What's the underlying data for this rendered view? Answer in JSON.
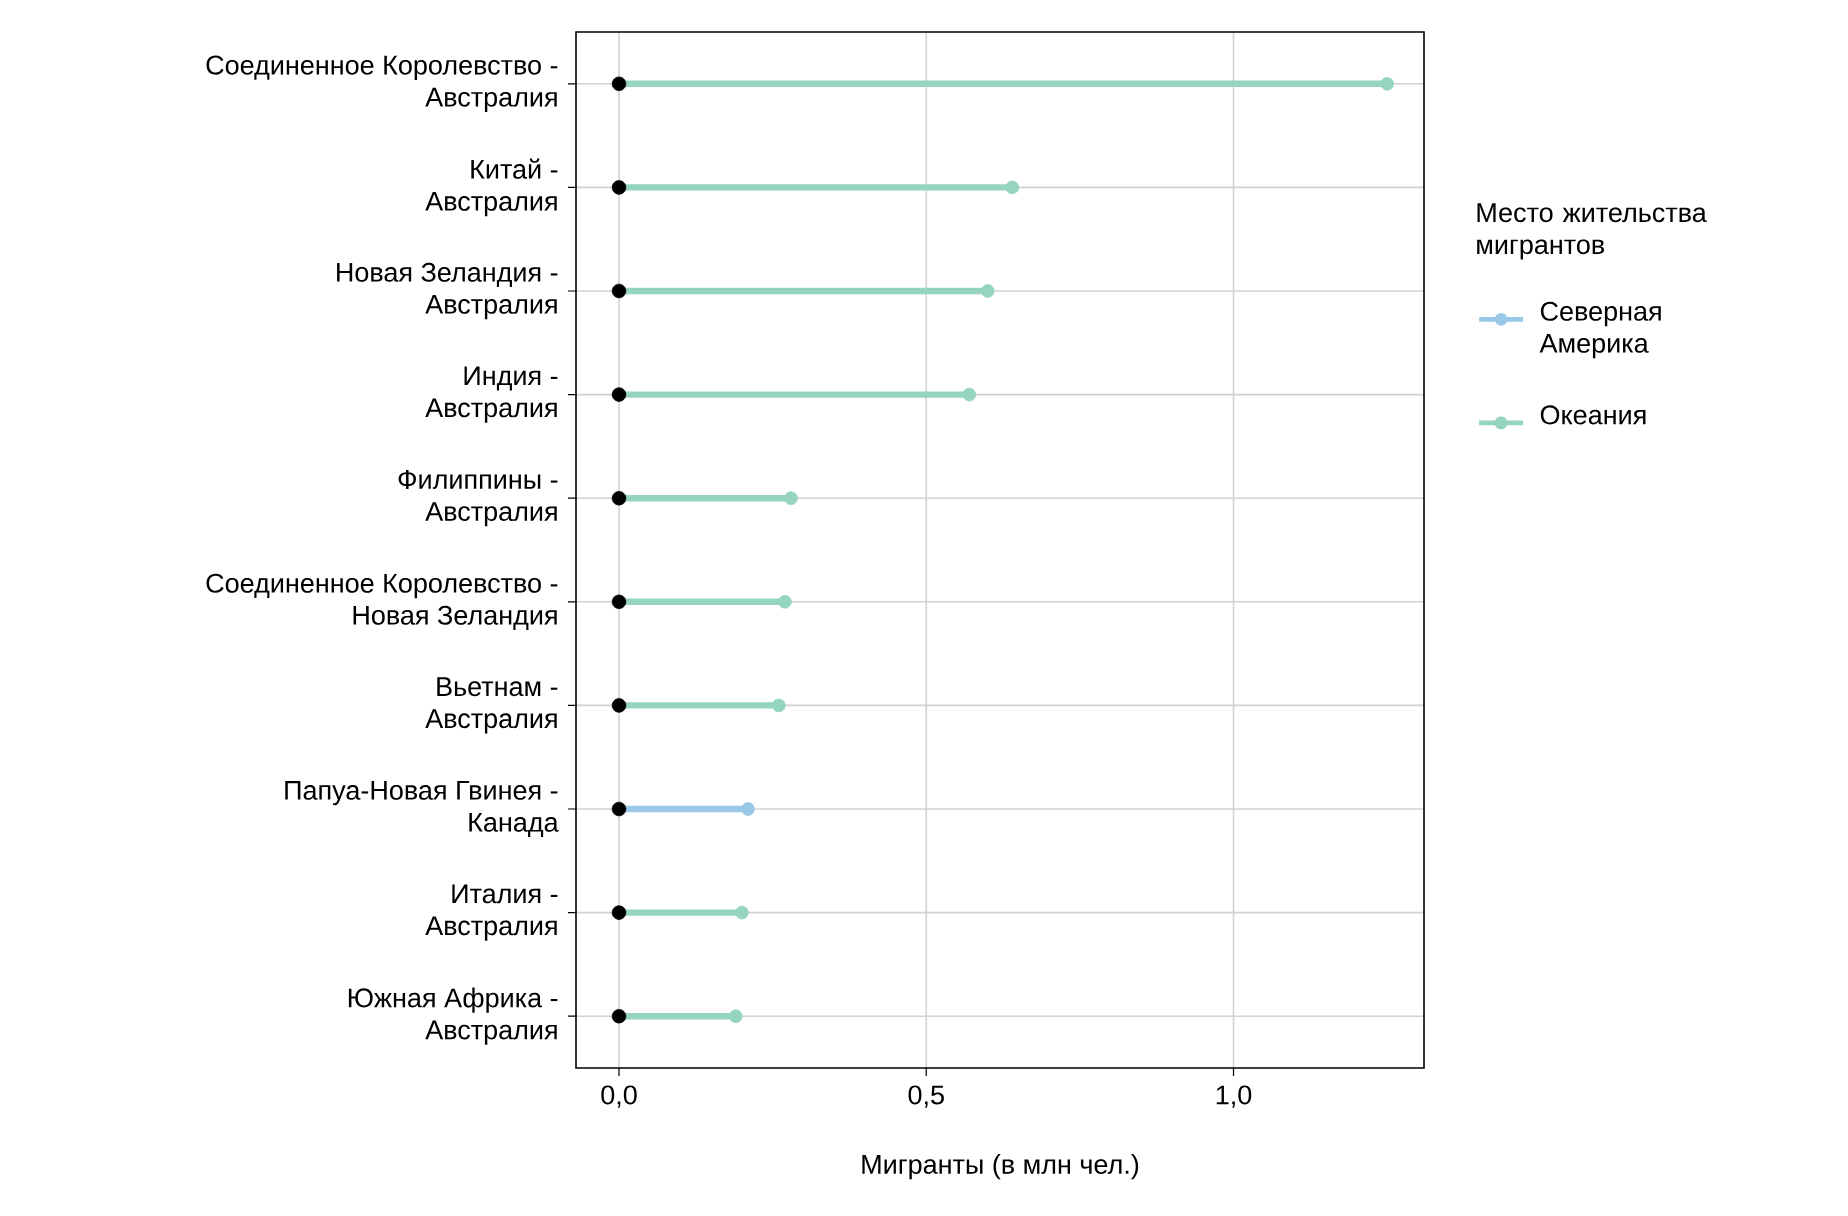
{
  "chart_data": {
    "type": "lollipop",
    "orientation": "horizontal",
    "categories": [
      "Соединенное Королевство - Австралия",
      "Китай - Австралия",
      "Новая Зеландия - Австралия",
      "Индия - Австралия",
      "Филиппины - Австралия",
      "Соединенное Королевство - Новая Зеландия",
      "Вьетнам - Австралия",
      "Папуа-Новая Гвинея - Канада",
      "Италия - Австралия",
      "Южная Африка - Австралия"
    ],
    "series": [
      {
        "name": "Северная Америка",
        "color": "#9ac8e9",
        "values": [
          null,
          null,
          null,
          null,
          null,
          null,
          null,
          0.21,
          null,
          null
        ]
      },
      {
        "name": "Океания",
        "color": "#95d5bf",
        "values": [
          1.25,
          0.64,
          0.6,
          0.57,
          0.28,
          0.27,
          0.26,
          null,
          0.2,
          0.19
        ]
      },
      {
        "type": "scatter",
        "color": "#000000",
        "values": [
          0,
          0,
          0,
          0,
          0,
          0,
          0,
          0,
          0,
          0
        ]
      }
    ],
    "xlabel": "Мигранты (в млн чел.)",
    "legend_title": "Место жительства мигрантов",
    "legend": "right",
    "grid": true,
    "marker": "circle",
    "xlim": [
      -0.07,
      1.31
    ],
    "xticks": [
      {
        "value": 0,
        "label": "0,0"
      },
      {
        "value": 0.5,
        "label": "0,5"
      },
      {
        "value": 1,
        "label": "1,0"
      }
    ]
  }
}
